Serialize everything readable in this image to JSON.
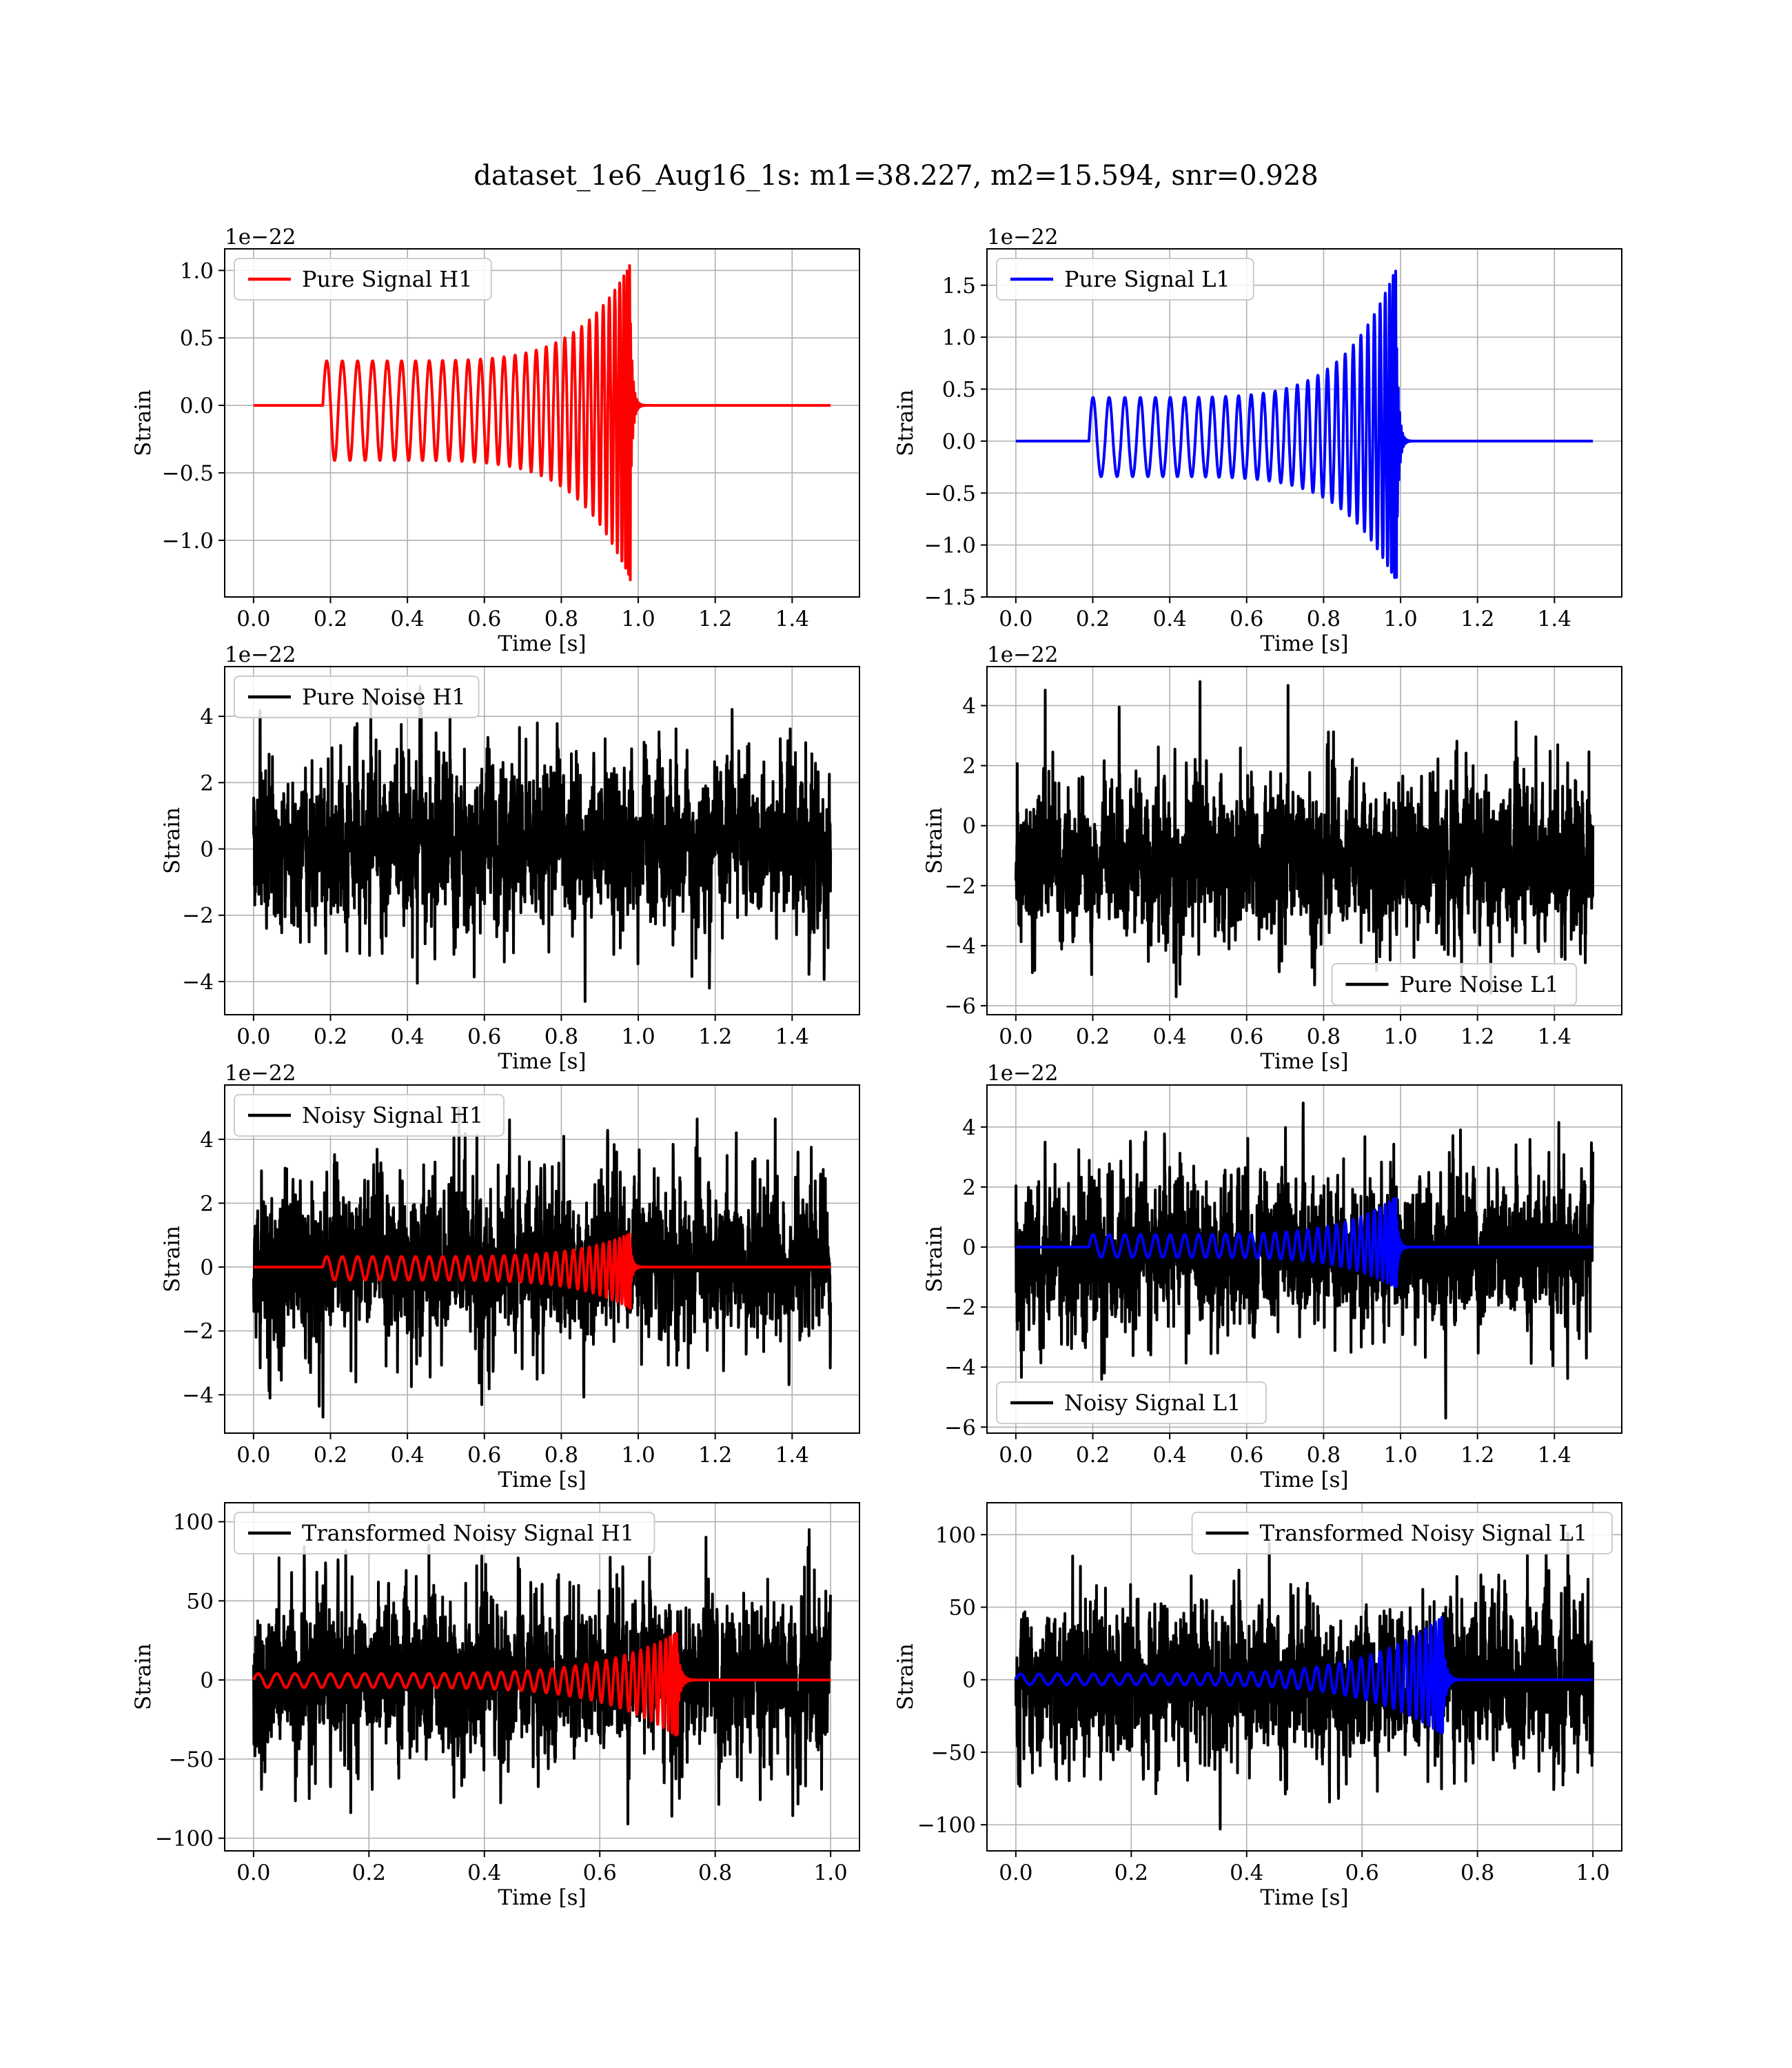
{
  "figure": {
    "title": "dataset_1e6_Aug16_1s: m1=38.227, m2=15.594, snr=0.928"
  },
  "chart_data": [
    {
      "id": "pure-signal-h1",
      "type": "line",
      "xlabel": "Time [s]",
      "ylabel": "Strain",
      "offset_label": "1e−22",
      "xlim": [
        -0.075,
        1.575
      ],
      "ylim": [
        -1.42,
        1.16
      ],
      "xticks": [
        0.0,
        0.2,
        0.4,
        0.6,
        0.8,
        1.0,
        1.2,
        1.4
      ],
      "xtick_labels": [
        "0.0",
        "0.2",
        "0.4",
        "0.6",
        "0.8",
        "1.0",
        "1.2",
        "1.4"
      ],
      "yticks": [
        -1.0,
        -0.5,
        0.0,
        0.5,
        1.0
      ],
      "ytick_labels": [
        "−1.0",
        "−0.5",
        "0.0",
        "0.5",
        "1.0"
      ],
      "grid": true,
      "legend_position": "upper left",
      "series": [
        {
          "name": "Pure Signal H1",
          "color": "#ff0000",
          "kind": "chirp",
          "x_range": [
            0.0,
            1.5
          ],
          "t_start": 0.18,
          "t_merge": 0.98,
          "amp_start": 0.33,
          "amp_peak": 1.05,
          "amp_min_peak": -1.3,
          "cycles": 31
        }
      ]
    },
    {
      "id": "pure-signal-l1",
      "type": "line",
      "xlabel": "Time [s]",
      "ylabel": "Strain",
      "offset_label": "1e−22",
      "xlim": [
        -0.075,
        1.575
      ],
      "ylim": [
        -1.5,
        1.85
      ],
      "xticks": [
        0.0,
        0.2,
        0.4,
        0.6,
        0.8,
        1.0,
        1.2,
        1.4
      ],
      "xtick_labels": [
        "0.0",
        "0.2",
        "0.4",
        "0.6",
        "0.8",
        "1.0",
        "1.2",
        "1.4"
      ],
      "yticks": [
        -1.5,
        -1.0,
        -0.5,
        0.0,
        0.5,
        1.0,
        1.5
      ],
      "ytick_labels": [
        "−1.5",
        "−1.0",
        "−0.5",
        "0.0",
        "0.5",
        "1.0",
        "1.5"
      ],
      "grid": true,
      "legend_position": "upper left",
      "series": [
        {
          "name": "Pure Signal L1",
          "color": "#0000ff",
          "kind": "chirp",
          "x_range": [
            0.0,
            1.5
          ],
          "t_start": 0.19,
          "t_merge": 0.99,
          "amp_start": 0.42,
          "amp_peak": 1.68,
          "amp_min_peak": -1.37,
          "cycles": 30
        }
      ]
    },
    {
      "id": "pure-noise-h1",
      "type": "line",
      "xlabel": "Time [s]",
      "ylabel": "Strain",
      "offset_label": "1e−22",
      "xlim": [
        -0.075,
        1.575
      ],
      "ylim": [
        -5.0,
        5.5
      ],
      "xticks": [
        0.0,
        0.2,
        0.4,
        0.6,
        0.8,
        1.0,
        1.2,
        1.4
      ],
      "xtick_labels": [
        "0.0",
        "0.2",
        "0.4",
        "0.6",
        "0.8",
        "1.0",
        "1.2",
        "1.4"
      ],
      "yticks": [
        -4,
        -2,
        0,
        2,
        4
      ],
      "ytick_labels": [
        "−4",
        "−2",
        "0",
        "2",
        "4"
      ],
      "grid": true,
      "legend_position": "upper left",
      "series": [
        {
          "name": "Pure Noise H1",
          "color": "#000000",
          "kind": "noise",
          "x_range": [
            0.0,
            1.5
          ],
          "noise_min": -4.6,
          "noise_max": 4.9
        }
      ]
    },
    {
      "id": "pure-noise-l1",
      "type": "line",
      "xlabel": "Time [s]",
      "ylabel": "Strain",
      "offset_label": "1e−22",
      "xlim": [
        -0.075,
        1.575
      ],
      "ylim": [
        -6.3,
        5.3
      ],
      "xticks": [
        0.0,
        0.2,
        0.4,
        0.6,
        0.8,
        1.0,
        1.2,
        1.4
      ],
      "xtick_labels": [
        "0.0",
        "0.2",
        "0.4",
        "0.6",
        "0.8",
        "1.0",
        "1.2",
        "1.4"
      ],
      "yticks": [
        -6,
        -4,
        -2,
        0,
        2,
        4
      ],
      "ytick_labels": [
        "−6",
        "−4",
        "−2",
        "0",
        "2",
        "4"
      ],
      "grid": true,
      "legend_position": "lower center",
      "series": [
        {
          "name": "Pure Noise L1",
          "color": "#000000",
          "kind": "noise",
          "x_range": [
            0.0,
            1.5
          ],
          "noise_min": -5.7,
          "noise_max": 4.8
        }
      ]
    },
    {
      "id": "noisy-signal-h1",
      "type": "line",
      "xlabel": "Time [s]",
      "ylabel": "Strain",
      "offset_label": "1e−22",
      "xlim": [
        -0.075,
        1.575
      ],
      "ylim": [
        -5.2,
        5.7
      ],
      "xticks": [
        0.0,
        0.2,
        0.4,
        0.6,
        0.8,
        1.0,
        1.2,
        1.4
      ],
      "xtick_labels": [
        "0.0",
        "0.2",
        "0.4",
        "0.6",
        "0.8",
        "1.0",
        "1.2",
        "1.4"
      ],
      "yticks": [
        -4,
        -2,
        0,
        2,
        4
      ],
      "ytick_labels": [
        "−4",
        "−2",
        "0",
        "2",
        "4"
      ],
      "grid": true,
      "legend_position": "upper left",
      "series": [
        {
          "name": "Noisy Signal H1",
          "color": "#000000",
          "kind": "noise",
          "x_range": [
            0.0,
            1.5
          ],
          "noise_min": -4.7,
          "noise_max": 5.0
        },
        {
          "name": "",
          "color": "#ff0000",
          "kind": "chirp",
          "x_range": [
            0.0,
            1.5
          ],
          "t_start": 0.18,
          "t_merge": 0.98,
          "amp_start": 0.33,
          "amp_peak": 1.05,
          "amp_min_peak": -1.3,
          "cycles": 31
        }
      ]
    },
    {
      "id": "noisy-signal-l1",
      "type": "line",
      "xlabel": "Time [s]",
      "ylabel": "Strain",
      "offset_label": "1e−22",
      "xlim": [
        -0.075,
        1.575
      ],
      "ylim": [
        -6.2,
        5.4
      ],
      "xticks": [
        0.0,
        0.2,
        0.4,
        0.6,
        0.8,
        1.0,
        1.2,
        1.4
      ],
      "xtick_labels": [
        "0.0",
        "0.2",
        "0.4",
        "0.6",
        "0.8",
        "1.0",
        "1.2",
        "1.4"
      ],
      "yticks": [
        -6,
        -4,
        -2,
        0,
        2,
        4
      ],
      "ytick_labels": [
        "−6",
        "−4",
        "−2",
        "0",
        "2",
        "4"
      ],
      "grid": true,
      "legend_position": "lower left",
      "series": [
        {
          "name": "Noisy Signal L1",
          "color": "#000000",
          "kind": "noise",
          "x_range": [
            0.0,
            1.5
          ],
          "noise_min": -5.7,
          "noise_max": 4.8
        },
        {
          "name": "",
          "color": "#0000ff",
          "kind": "chirp",
          "x_range": [
            0.0,
            1.5
          ],
          "t_start": 0.19,
          "t_merge": 0.99,
          "amp_start": 0.42,
          "amp_peak": 1.68,
          "amp_min_peak": -1.37,
          "cycles": 30
        }
      ]
    },
    {
      "id": "transformed-noisy-signal-h1",
      "type": "line",
      "xlabel": "Time [s]",
      "ylabel": "Strain",
      "offset_label": "",
      "xlim": [
        -0.05,
        1.05
      ],
      "ylim": [
        -108,
        112
      ],
      "xticks": [
        0.0,
        0.2,
        0.4,
        0.6,
        0.8,
        1.0
      ],
      "xtick_labels": [
        "0.0",
        "0.2",
        "0.4",
        "0.6",
        "0.8",
        "1.0"
      ],
      "yticks": [
        -100,
        -50,
        0,
        50,
        100
      ],
      "ytick_labels": [
        "−100",
        "−50",
        "0",
        "50",
        "100"
      ],
      "grid": true,
      "legend_position": "upper left",
      "series": [
        {
          "name": "Transformed Noisy Signal H1",
          "color": "#000000",
          "kind": "noise",
          "x_range": [
            0.0,
            1.0
          ],
          "noise_min": -91,
          "noise_max": 95
        },
        {
          "name": "",
          "color": "#ff0000",
          "kind": "chirp",
          "x_range": [
            0.0,
            1.0
          ],
          "t_start": 0.0,
          "t_merge": 0.735,
          "amp_start": 4,
          "amp_peak": 30,
          "amp_min_peak": -36,
          "cycles": 36
        }
      ]
    },
    {
      "id": "transformed-noisy-signal-l1",
      "type": "line",
      "xlabel": "Time [s]",
      "ylabel": "Strain",
      "offset_label": "",
      "xlim": [
        -0.05,
        1.05
      ],
      "ylim": [
        -118,
        122
      ],
      "xticks": [
        0.0,
        0.2,
        0.4,
        0.6,
        0.8,
        1.0
      ],
      "xtick_labels": [
        "0.0",
        "0.2",
        "0.4",
        "0.6",
        "0.8",
        "1.0"
      ],
      "yticks": [
        -100,
        -50,
        0,
        50,
        100
      ],
      "ytick_labels": [
        "−100",
        "−50",
        "0",
        "50",
        "100"
      ],
      "grid": true,
      "legend_position": "upper right",
      "series": [
        {
          "name": "Transformed Noisy Signal L1",
          "color": "#000000",
          "kind": "noise",
          "x_range": [
            0.0,
            1.0
          ],
          "noise_min": -103,
          "noise_max": 101
        },
        {
          "name": "",
          "color": "#0000ff",
          "kind": "chirp",
          "x_range": [
            0.0,
            1.0
          ],
          "t_start": 0.0,
          "t_merge": 0.74,
          "amp_start": 4,
          "amp_peak": 44,
          "amp_min_peak": -38,
          "cycles": 36
        }
      ]
    }
  ]
}
